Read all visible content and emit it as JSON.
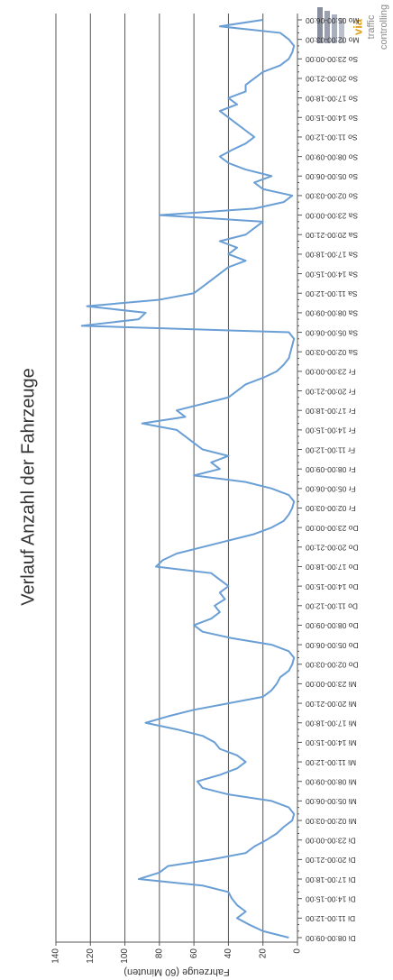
{
  "logo": {
    "line1": "via",
    "line2": "traffic",
    "line3": "controlling"
  },
  "chart_data": {
    "type": "line",
    "title": "Verlauf Anzahl der Fahrzeuge",
    "y_label": "Fahrzeuge (60 Minuten)",
    "ylim": [
      0,
      140
    ],
    "yticks": [
      0,
      20,
      40,
      60,
      80,
      100,
      120,
      140
    ],
    "grid": true,
    "categories": [
      "Di 08:00-09:00",
      null,
      null,
      "Di 11:00-12:00",
      null,
      null,
      "Di 14:00-15:00",
      null,
      null,
      "Di 17:00-18:00",
      null,
      null,
      "Di 20:00-21:00",
      null,
      null,
      "Di 23:00-00:00",
      null,
      null,
      "Mi 02:00-03:00",
      null,
      null,
      "Mi 05:00-06:00",
      null,
      null,
      "Mi 08:00-09:00",
      null,
      null,
      "Mi 11:00-12:00",
      null,
      null,
      "Mi 14:00-15:00",
      null,
      null,
      "Mi 17:00-18:00",
      null,
      null,
      "Mi 20:00-21:00",
      null,
      null,
      "Mi 23:00-00:00",
      null,
      null,
      "Do 02:00-03:00",
      null,
      null,
      "Do 05:00-06:00",
      null,
      null,
      "Do 08:00-09:00",
      null,
      null,
      "Do 11:00-12:00",
      null,
      null,
      "Do 14:00-15:00",
      null,
      null,
      "Do 17:00-18:00",
      null,
      null,
      "Do 20:00-21:00",
      null,
      null,
      "Do 23:00-00:00",
      null,
      null,
      "Fr 02:00-03:00",
      null,
      null,
      "Fr 05:00-06:00",
      null,
      null,
      "Fr 08:00-09:00",
      null,
      null,
      "Fr 11:00-12:00",
      null,
      null,
      "Fr 14:00-15:00",
      null,
      null,
      "Fr 17:00-18:00",
      null,
      null,
      "Fr 20:00-21:00",
      null,
      null,
      "Fr 23:00-00:00",
      null,
      null,
      "Sa 02:00-03:00",
      null,
      null,
      "Sa 05:00-06:00",
      null,
      null,
      "Sa 08:00-09:00",
      null,
      null,
      "Sa 11:00-12:00",
      null,
      null,
      "Sa 14:00-15:00",
      null,
      null,
      "Sa 17:00-18:00",
      null,
      null,
      "Sa 20:00-21:00",
      null,
      null,
      "Sa 23:00-00:00",
      null,
      null,
      "So 02:00-03:00",
      null,
      null,
      "So 05:00-06:00",
      null,
      null,
      "So 08:00-09:00",
      null,
      null,
      "So 11:00-12:00",
      null,
      null,
      "So 14:00-15:00",
      null,
      null,
      "So 17:00-18:00",
      null,
      null,
      "So 20:00-21:00",
      null,
      null,
      "So 23:00-00:00",
      null,
      null,
      "Mo 02:00-03:00",
      null,
      null,
      "Mo 05:00-06:00"
    ],
    "series": [
      {
        "name": "Fahrzeuge",
        "color": "#6a9fd6",
        "values": [
          5,
          20,
          28,
          35,
          30,
          35,
          38,
          40,
          55,
          92,
          80,
          75,
          50,
          30,
          25,
          18,
          12,
          8,
          3,
          2,
          5,
          15,
          40,
          55,
          58,
          45,
          35,
          30,
          35,
          45,
          48,
          55,
          70,
          88,
          75,
          60,
          40,
          20,
          15,
          12,
          10,
          5,
          3,
          2,
          5,
          15,
          38,
          55,
          60,
          50,
          45,
          48,
          42,
          45,
          40,
          45,
          50,
          82,
          78,
          70,
          55,
          40,
          25,
          15,
          8,
          5,
          3,
          2,
          5,
          15,
          30,
          60,
          45,
          50,
          40,
          55,
          60,
          65,
          70,
          90,
          65,
          70,
          55,
          40,
          35,
          30,
          20,
          12,
          8,
          5,
          4,
          3,
          2,
          5,
          125,
          92,
          88,
          122,
          80,
          60,
          55,
          50,
          45,
          40,
          30,
          40,
          35,
          45,
          30,
          25,
          20,
          80,
          25,
          8,
          3,
          20,
          25,
          15,
          30,
          40,
          45,
          38,
          30,
          25,
          30,
          35,
          40,
          45,
          35,
          40,
          30,
          30,
          25,
          20,
          10,
          5,
          3,
          2,
          5,
          10,
          45,
          20
        ]
      }
    ]
  }
}
